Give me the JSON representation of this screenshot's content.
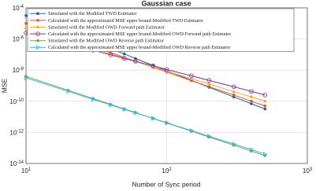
{
  "chart_data": {
    "type": "line",
    "title": "Gaussian case",
    "x_label": "Number of Sync period",
    "y_label": "MSE",
    "log_x": true,
    "log_y": true,
    "grid": true,
    "legend_position": "upper-left",
    "xlim": [
      10,
      1000
    ],
    "xticks": [
      {
        "value": 10,
        "label": "10^1"
      },
      {
        "value": 100,
        "label": "10^2"
      },
      {
        "value": 1000,
        "label": "10^3"
      }
    ],
    "ylim": [
      1e-14,
      0.0001
    ],
    "yticks": [
      {
        "value": 1e-14,
        "label": "10^-14"
      },
      {
        "value": 1e-12,
        "label": "10^-12"
      },
      {
        "value": 1e-10,
        "label": "10^-10"
      },
      {
        "value": 1e-08,
        "label": "10^-8"
      },
      {
        "value": 1e-06,
        "label": "10^-6"
      },
      {
        "value": 0.0001,
        "label": "10^-4"
      }
    ],
    "x": [
      10,
      20,
      30,
      40,
      50,
      60,
      80,
      100,
      150,
      200,
      300,
      400,
      500
    ],
    "series": [
      {
        "name": "Simulated with the Modified TWD Estimator",
        "color": "#1f5fbf",
        "marker": "dot",
        "values": [
          3.2e-05,
          2.8e-06,
          6.6e-07,
          2.3e-07,
          1.1e-07,
          5.6e-08,
          2e-08,
          9.3e-09,
          2.2e-09,
          7.9e-10,
          1.9e-10,
          6.9e-11,
          3.2e-11
        ]
      },
      {
        "name": "Calculated with the approximated MSE upper bound-Modified TWD Estimator",
        "color": "#e0502a",
        "marker": "star",
        "values": [
          1e-05,
          1.1e-06,
          3.2e-07,
          1.3e-07,
          6.6e-08,
          3.7e-08,
          1.5e-08,
          7.6e-09,
          2.1e-09,
          8.7e-10,
          2.5e-10,
          1e-10,
          5e-11
        ]
      },
      {
        "name": "Simulated with the Modified OWD Forward path Estimator",
        "color": "#f0b020",
        "marker": "dot",
        "values": [
          5e-06,
          7.4e-07,
          2.4e-07,
          1.1e-07,
          5.8e-08,
          3.5e-08,
          1.6e-08,
          8.5e-09,
          2.8e-09,
          1.3e-09,
          4.1e-10,
          1.9e-10,
          1e-10
        ]
      },
      {
        "name": "Calculated with the approximated MSE upper bound-Modified OWD Forward path Estimator",
        "color": "#8a2ea0",
        "marker": "diamond",
        "values": [
          2.5e-06,
          4.9e-07,
          1.9e-07,
          9.5e-08,
          5.6e-08,
          3.7e-08,
          1.9e-08,
          1.1e-08,
          4.3e-09,
          2.2e-09,
          8.5e-10,
          4.3e-10,
          2.5e-10
        ]
      },
      {
        "name": "Simulated with the Modified OWD Reverse path Estimator",
        "color": "#6aa84f",
        "marker": "dot",
        "values": [
          4e-09,
          5e-10,
          1.5e-10,
          6.2e-11,
          3.2e-11,
          1.9e-11,
          7.8e-12,
          4e-12,
          1.2e-12,
          5e-13,
          1.5e-13,
          6.2e-14,
          3.2e-14
        ]
      },
      {
        "name": "Calculated with the approximated MSE upper bound-Modified OWD Reverse path Estimator",
        "color": "#3bb8d8",
        "marker": "triangle",
        "values": [
          3.2e-09,
          4.3e-10,
          1.3e-10,
          5.8e-11,
          3e-11,
          1.8e-11,
          7.9e-12,
          4.2e-12,
          1.3e-12,
          5.6e-13,
          1.8e-13,
          7.8e-14,
          4e-14
        ]
      }
    ]
  }
}
